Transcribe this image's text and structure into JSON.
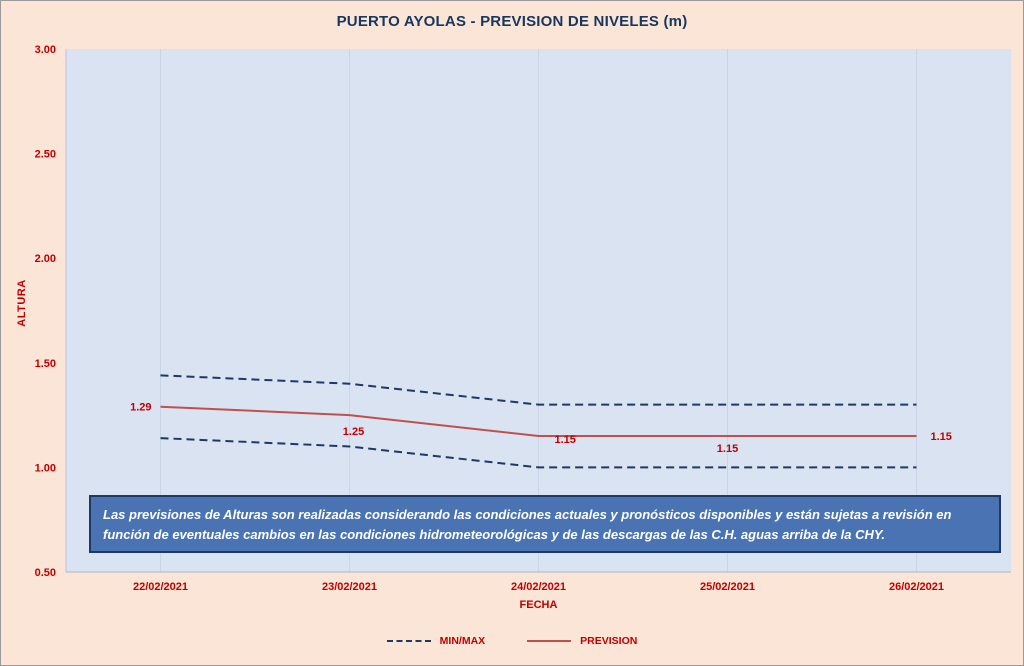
{
  "chart_data": {
    "type": "line",
    "title": "PUERTO AYOLAS - PREVISION DE NIVELES (m)",
    "xlabel": "FECHA",
    "ylabel": "ALTURA",
    "categories": [
      "22/02/2021",
      "23/02/2021",
      "24/02/2021",
      "25/02/2021",
      "26/02/2021"
    ],
    "series": [
      {
        "name": "MAX",
        "style": "dashed",
        "values": [
          1.44,
          1.4,
          1.3,
          1.3,
          1.3
        ]
      },
      {
        "name": "PREVISION",
        "style": "solid",
        "values": [
          1.29,
          1.25,
          1.15,
          1.15,
          1.15
        ]
      },
      {
        "name": "MIN",
        "style": "dashed",
        "values": [
          1.14,
          1.1,
          1.0,
          1.0,
          1.0
        ]
      }
    ],
    "point_labels": [
      "1.29",
      "1.25",
      "1.15",
      "1.15",
      "1.15"
    ],
    "ylim": [
      0.5,
      3.0
    ],
    "yticks": [
      "3.00",
      "2.50",
      "2.00",
      "1.50",
      "1.00",
      "0.50"
    ],
    "legend": [
      "MIN/MAX",
      "PREVISION"
    ],
    "legend_position": "bottom",
    "grid": "vertical-only"
  },
  "note": {
    "line1": "Las previsiones de Alturas son realizadas considerando las condiciones actuales y pronósticos disponibles y están sujetas a revisión en",
    "line2": "función de eventuales cambios en las condiciones hidrometeorológicas y de las descargas de las C.H. aguas arriba de la CHY."
  },
  "colors": {
    "page_bg": "#fbe5d6",
    "plot_bg": "#dae3f1",
    "title_text": "#17375e",
    "axis_text": "#c00000",
    "prevision_line": "#c0504d",
    "minmax_line": "#1f3864",
    "note_bg": "#4a73b3",
    "note_border": "#1f3864",
    "gridline": "#c9d4e6"
  }
}
